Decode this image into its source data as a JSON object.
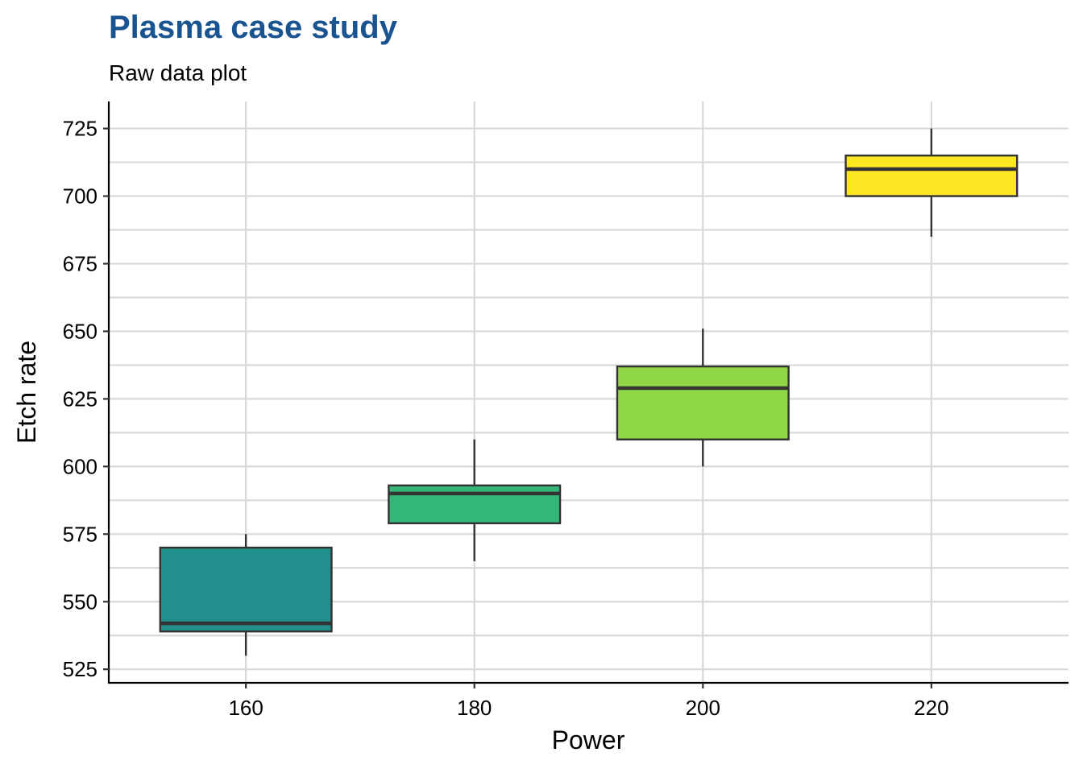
{
  "chart_data": {
    "type": "box",
    "title": "Plasma case study",
    "subtitle": "Raw data plot",
    "xlabel": "Power",
    "ylabel": "Etch rate",
    "x_ticks": [
      160,
      180,
      200,
      220
    ],
    "y_ticks": [
      525,
      550,
      575,
      600,
      625,
      650,
      675,
      700,
      725
    ],
    "xlim": [
      148,
      232
    ],
    "ylim": [
      520,
      735
    ],
    "grid": true,
    "legend": "none",
    "boxes": [
      {
        "x": 160,
        "min": 530,
        "q1": 539,
        "median": 542,
        "q3": 570,
        "max": 575,
        "color": "#21908c"
      },
      {
        "x": 180,
        "min": 565,
        "q1": 579,
        "median": 590,
        "q3": 593,
        "max": 610,
        "color": "#35b779"
      },
      {
        "x": 200,
        "min": 600,
        "q1": 610,
        "median": 629,
        "q3": 637,
        "max": 651,
        "color": "#8fd744"
      },
      {
        "x": 220,
        "min": 685,
        "q1": 700,
        "median": 710,
        "q3": 715,
        "max": 725,
        "color": "#fde725"
      }
    ]
  }
}
